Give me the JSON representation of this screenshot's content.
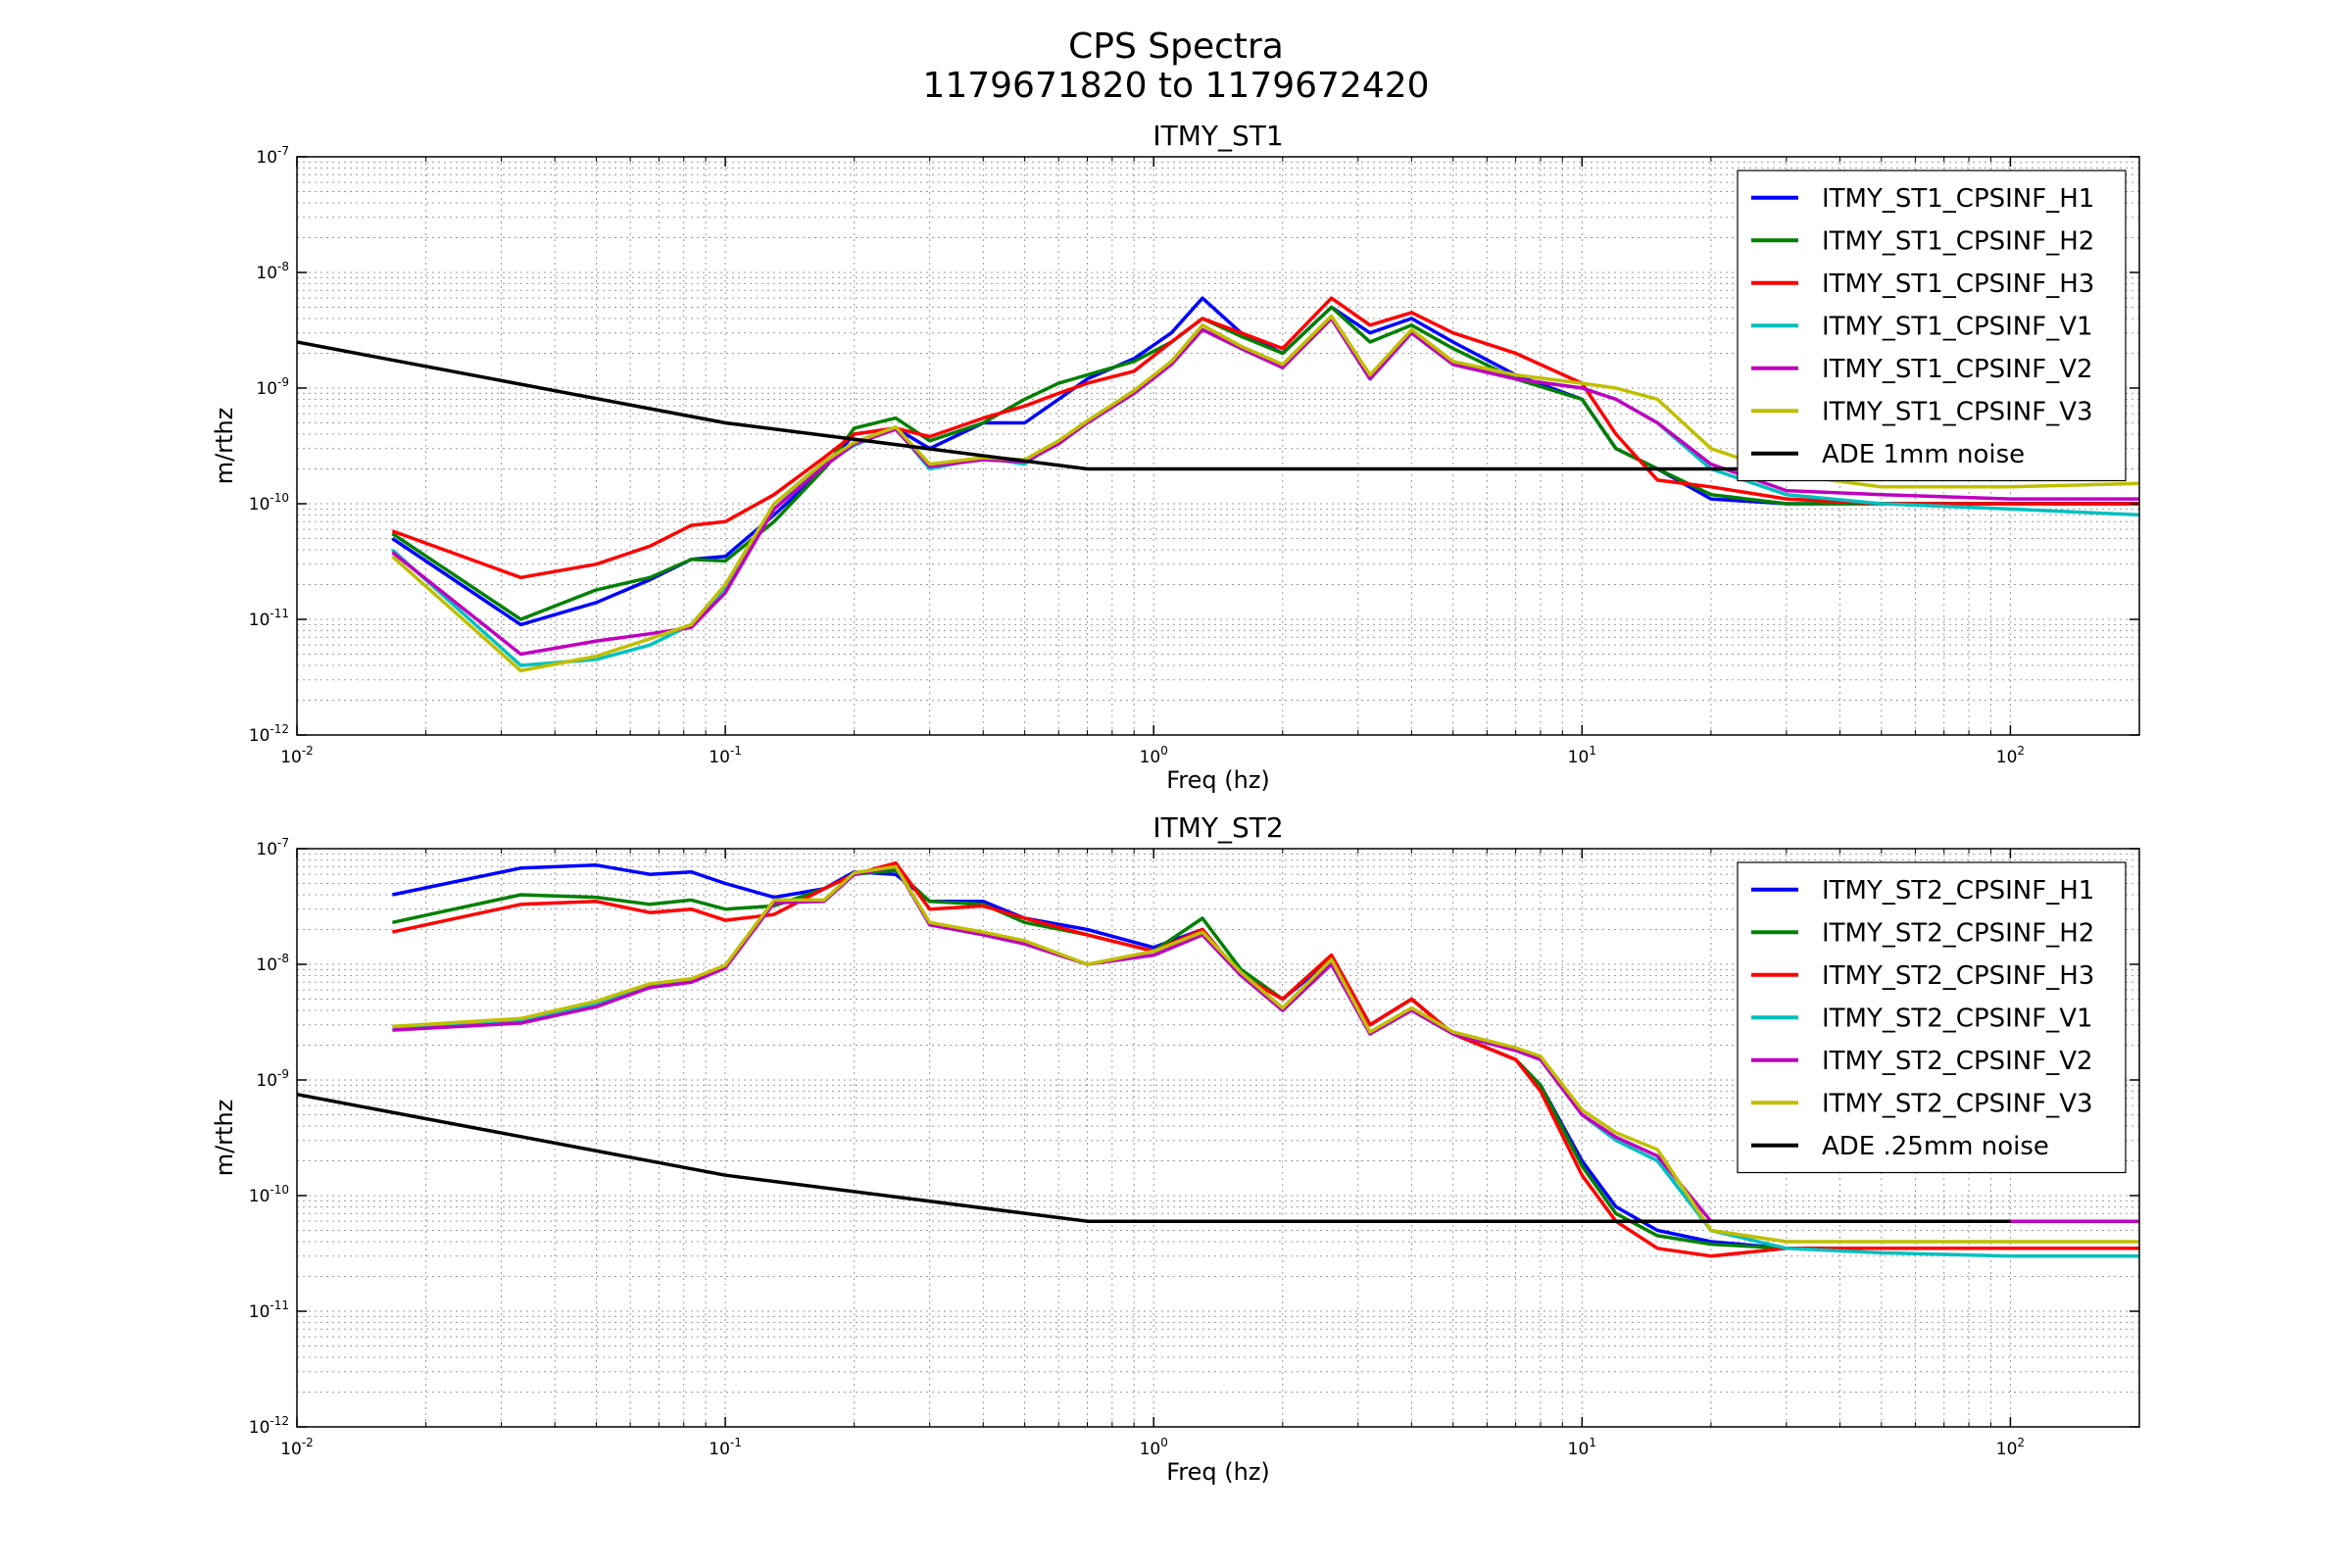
{
  "figure": {
    "title": "CPS Spectra",
    "subtitle": "1179671820 to 1179672420"
  },
  "chart_data": [
    {
      "type": "line",
      "title": "ITMY_ST1",
      "xlabel": "Freq (hz)",
      "ylabel": "m/rthz",
      "xscale": "log",
      "yscale": "log",
      "xlim": [
        0.01,
        200
      ],
      "ylim": [
        1e-12,
        1e-07
      ],
      "xticks": [
        0.01,
        0.1,
        1,
        10,
        100
      ],
      "xtick_labels": [
        {
          "b": "10",
          "e": "-2"
        },
        {
          "b": "10",
          "e": "-1"
        },
        {
          "b": "10",
          "e": "0"
        },
        {
          "b": "10",
          "e": "1"
        },
        {
          "b": "10",
          "e": "2"
        }
      ],
      "yticks": [
        1e-12,
        1e-11,
        1e-10,
        1e-09,
        1e-08,
        1e-07
      ],
      "ytick_labels": [
        {
          "b": "10",
          "e": "-12"
        },
        {
          "b": "10",
          "e": "-11"
        },
        {
          "b": "10",
          "e": "-10"
        },
        {
          "b": "10",
          "e": "-9"
        },
        {
          "b": "10",
          "e": "-8"
        },
        {
          "b": "10",
          "e": "-7"
        }
      ],
      "grid": true,
      "legend_position": "top-right",
      "series": [
        {
          "name": "ITMY_ST1_CPSINF_H1",
          "color": "#0000ff",
          "x": [
            0.0167,
            0.0333,
            0.05,
            0.0667,
            0.0833,
            0.1,
            0.13,
            0.17,
            0.2,
            0.25,
            0.3,
            0.4,
            0.5,
            0.6,
            0.7,
            0.9,
            1.1,
            1.3,
            1.6,
            2.0,
            2.6,
            3.2,
            4.0,
            5.0,
            7.0,
            10,
            12,
            15,
            20,
            30,
            50,
            100,
            200
          ],
          "y": [
            5e-11,
            9e-12,
            1.4e-11,
            2.2e-11,
            3.3e-11,
            3.5e-11,
            8e-11,
            2e-10,
            4e-10,
            4.5e-10,
            3e-10,
            5e-10,
            5e-10,
            8e-10,
            1.2e-09,
            1.8e-09,
            3e-09,
            6e-09,
            3e-09,
            2e-09,
            5e-09,
            3e-09,
            4e-09,
            2.5e-09,
            1.3e-09,
            8e-10,
            3e-10,
            2e-10,
            1.1e-10,
            1e-10,
            1e-10,
            1e-10,
            1e-10
          ]
        },
        {
          "name": "ITMY_ST1_CPSINF_H2",
          "color": "#008000",
          "x": [
            0.0167,
            0.0333,
            0.05,
            0.0667,
            0.0833,
            0.1,
            0.13,
            0.17,
            0.2,
            0.25,
            0.3,
            0.4,
            0.5,
            0.6,
            0.7,
            0.9,
            1.1,
            1.3,
            1.6,
            2.0,
            2.6,
            3.2,
            4.0,
            5.0,
            7.0,
            10,
            12,
            15,
            20,
            30,
            50,
            100,
            200
          ],
          "y": [
            5.5e-11,
            1e-11,
            1.8e-11,
            2.3e-11,
            3.3e-11,
            3.2e-11,
            7e-11,
            2e-10,
            4.5e-10,
            5.5e-10,
            3.5e-10,
            5e-10,
            8e-10,
            1.1e-09,
            1.3e-09,
            1.7e-09,
            2.5e-09,
            4e-09,
            2.8e-09,
            2e-09,
            5e-09,
            2.5e-09,
            3.5e-09,
            2.2e-09,
            1.2e-09,
            8e-10,
            3e-10,
            2e-10,
            1.2e-10,
            1e-10,
            1e-10,
            1e-10,
            1e-10
          ]
        },
        {
          "name": "ITMY_ST1_CPSINF_H3",
          "color": "#ff0000",
          "x": [
            0.0167,
            0.0333,
            0.05,
            0.0667,
            0.0833,
            0.1,
            0.13,
            0.17,
            0.2,
            0.25,
            0.3,
            0.4,
            0.5,
            0.6,
            0.7,
            0.9,
            1.1,
            1.3,
            1.6,
            2.0,
            2.6,
            3.2,
            4.0,
            5.0,
            7.0,
            10,
            12,
            15,
            20,
            30,
            50,
            100,
            200
          ],
          "y": [
            5.8e-11,
            2.3e-11,
            3e-11,
            4.3e-11,
            6.5e-11,
            7e-11,
            1.2e-10,
            2.5e-10,
            4e-10,
            4.5e-10,
            3.8e-10,
            5.5e-10,
            7e-10,
            9e-10,
            1.1e-09,
            1.4e-09,
            2.5e-09,
            4e-09,
            3e-09,
            2.2e-09,
            6e-09,
            3.5e-09,
            4.5e-09,
            3e-09,
            2e-09,
            1.1e-09,
            4e-10,
            1.6e-10,
            1.4e-10,
            1.1e-10,
            1e-10,
            1e-10,
            1e-10
          ]
        },
        {
          "name": "ITMY_ST1_CPSINF_V1",
          "color": "#00bfbf",
          "x": [
            0.0167,
            0.0333,
            0.05,
            0.0667,
            0.0833,
            0.1,
            0.13,
            0.17,
            0.2,
            0.25,
            0.3,
            0.4,
            0.5,
            0.6,
            0.7,
            0.9,
            1.1,
            1.3,
            1.6,
            2.0,
            2.6,
            3.2,
            4.0,
            5.0,
            7.0,
            10,
            12,
            15,
            20,
            30,
            50,
            100,
            200
          ],
          "y": [
            4e-11,
            4e-12,
            4.5e-12,
            6e-12,
            9e-12,
            1.9e-11,
            9e-11,
            2.2e-10,
            3.2e-10,
            4.5e-10,
            2e-10,
            2.5e-10,
            2.2e-10,
            3.5e-10,
            5e-10,
            9e-10,
            1.7e-09,
            3.2e-09,
            2.2e-09,
            1.5e-09,
            4e-09,
            1.2e-09,
            3e-09,
            1.6e-09,
            1.2e-09,
            1e-09,
            8e-10,
            5e-10,
            2e-10,
            1.2e-10,
            1e-10,
            9e-11,
            8e-11
          ]
        },
        {
          "name": "ITMY_ST1_CPSINF_V2",
          "color": "#bf00bf",
          "x": [
            0.0167,
            0.0333,
            0.05,
            0.0667,
            0.0833,
            0.1,
            0.13,
            0.17,
            0.2,
            0.25,
            0.3,
            0.4,
            0.5,
            0.6,
            0.7,
            0.9,
            1.1,
            1.3,
            1.6,
            2.0,
            2.6,
            3.2,
            4.0,
            5.0,
            7.0,
            10,
            12,
            15,
            20,
            30,
            50,
            100,
            200
          ],
          "y": [
            3.8e-11,
            5e-12,
            6.5e-12,
            7.5e-12,
            8.5e-12,
            1.7e-11,
            9e-11,
            2.1e-10,
            3.3e-10,
            4.4e-10,
            2.1e-10,
            2.4e-10,
            2.3e-10,
            3.3e-10,
            5e-10,
            9e-10,
            1.6e-09,
            3.2e-09,
            2.2e-09,
            1.5e-09,
            4e-09,
            1.2e-09,
            3e-09,
            1.6e-09,
            1.2e-09,
            1e-09,
            8e-10,
            5e-10,
            2.2e-10,
            1.3e-10,
            1.2e-10,
            1.1e-10,
            1.1e-10
          ]
        },
        {
          "name": "ITMY_ST1_CPSINF_V3",
          "color": "#bfbf00",
          "x": [
            0.0167,
            0.0333,
            0.05,
            0.0667,
            0.0833,
            0.1,
            0.13,
            0.17,
            0.2,
            0.25,
            0.3,
            0.4,
            0.5,
            0.6,
            0.7,
            0.9,
            1.1,
            1.3,
            1.6,
            2.0,
            2.6,
            3.2,
            4.0,
            5.0,
            7.0,
            10,
            12,
            15,
            20,
            30,
            50,
            100,
            200
          ],
          "y": [
            3.5e-11,
            3.6e-12,
            4.8e-12,
            6.8e-12,
            9e-12,
            2e-11,
            1e-10,
            2.3e-10,
            3.4e-10,
            4.6e-10,
            2.2e-10,
            2.5e-10,
            2.4e-10,
            3.5e-10,
            5.2e-10,
            9.5e-10,
            1.7e-09,
            3.5e-09,
            2.3e-09,
            1.6e-09,
            4.2e-09,
            1.3e-09,
            3.2e-09,
            1.7e-09,
            1.3e-09,
            1.1e-09,
            1e-09,
            8e-10,
            3e-10,
            1.8e-10,
            1.4e-10,
            1.4e-10,
            1.5e-10
          ]
        },
        {
          "name": "ADE 1mm noise",
          "color": "#000000",
          "x": [
            0.01,
            0.1,
            0.7,
            100
          ],
          "y": [
            2.5e-09,
            5e-10,
            2e-10,
            2e-10
          ]
        }
      ]
    },
    {
      "type": "line",
      "title": "ITMY_ST2",
      "xlabel": "Freq (hz)",
      "ylabel": "m/rthz",
      "xscale": "log",
      "yscale": "log",
      "xlim": [
        0.01,
        200
      ],
      "ylim": [
        1e-12,
        1e-07
      ],
      "xticks": [
        0.01,
        0.1,
        1,
        10,
        100
      ],
      "xtick_labels": [
        {
          "b": "10",
          "e": "-2"
        },
        {
          "b": "10",
          "e": "-1"
        },
        {
          "b": "10",
          "e": "0"
        },
        {
          "b": "10",
          "e": "1"
        },
        {
          "b": "10",
          "e": "2"
        }
      ],
      "yticks": [
        1e-12,
        1e-11,
        1e-10,
        1e-09,
        1e-08,
        1e-07
      ],
      "ytick_labels": [
        {
          "b": "10",
          "e": "-12"
        },
        {
          "b": "10",
          "e": "-11"
        },
        {
          "b": "10",
          "e": "-10"
        },
        {
          "b": "10",
          "e": "-9"
        },
        {
          "b": "10",
          "e": "-8"
        },
        {
          "b": "10",
          "e": "-7"
        }
      ],
      "grid": true,
      "legend_position": "top-right",
      "series": [
        {
          "name": "ITMY_ST2_CPSINF_H1",
          "color": "#0000ff",
          "x": [
            0.0167,
            0.0333,
            0.05,
            0.0667,
            0.0833,
            0.1,
            0.13,
            0.17,
            0.2,
            0.25,
            0.3,
            0.4,
            0.5,
            0.7,
            1.0,
            1.3,
            1.6,
            2.0,
            2.6,
            3.2,
            4.0,
            5.0,
            7.0,
            8.0,
            10,
            12,
            15,
            20,
            30,
            50,
            100,
            200
          ],
          "y": [
            4e-08,
            6.8e-08,
            7.2e-08,
            6e-08,
            6.3e-08,
            5e-08,
            3.8e-08,
            4.5e-08,
            6.3e-08,
            6e-08,
            3.5e-08,
            3.5e-08,
            2.5e-08,
            2e-08,
            1.4e-08,
            2e-08,
            8e-09,
            5e-09,
            1.1e-08,
            3e-09,
            5e-09,
            2.5e-09,
            1.5e-09,
            9e-10,
            2e-10,
            8e-11,
            5e-11,
            4e-11,
            3.5e-11,
            3.5e-11,
            3.5e-11,
            3.5e-11
          ]
        },
        {
          "name": "ITMY_ST2_CPSINF_H2",
          "color": "#008000",
          "x": [
            0.0167,
            0.0333,
            0.05,
            0.0667,
            0.0833,
            0.1,
            0.13,
            0.17,
            0.2,
            0.25,
            0.3,
            0.4,
            0.5,
            0.7,
            1.0,
            1.3,
            1.6,
            2.0,
            2.6,
            3.2,
            4.0,
            5.0,
            7.0,
            8.0,
            10,
            12,
            15,
            20,
            30,
            50,
            100,
            200
          ],
          "y": [
            2.3e-08,
            4e-08,
            3.8e-08,
            3.3e-08,
            3.6e-08,
            3e-08,
            3.2e-08,
            4.5e-08,
            6e-08,
            6.5e-08,
            3.5e-08,
            3.3e-08,
            2.3e-08,
            1.8e-08,
            1.3e-08,
            2.5e-08,
            9e-09,
            5e-09,
            1.2e-08,
            3e-09,
            5e-09,
            2.5e-09,
            1.5e-09,
            9e-10,
            1.8e-10,
            7e-11,
            4.5e-11,
            3.8e-11,
            3.5e-11,
            3.5e-11,
            3.5e-11,
            3.5e-11
          ]
        },
        {
          "name": "ITMY_ST2_CPSINF_H3",
          "color": "#ff0000",
          "x": [
            0.0167,
            0.0333,
            0.05,
            0.0667,
            0.0833,
            0.1,
            0.13,
            0.17,
            0.2,
            0.25,
            0.3,
            0.4,
            0.5,
            0.7,
            1.0,
            1.3,
            1.6,
            2.0,
            2.6,
            3.2,
            4.0,
            5.0,
            7.0,
            8.0,
            10,
            12,
            15,
            20,
            30,
            50,
            100,
            200
          ],
          "y": [
            1.9e-08,
            3.3e-08,
            3.5e-08,
            2.8e-08,
            3e-08,
            2.4e-08,
            2.7e-08,
            4.5e-08,
            6e-08,
            7.5e-08,
            3e-08,
            3.2e-08,
            2.5e-08,
            1.8e-08,
            1.3e-08,
            2e-08,
            8e-09,
            5e-09,
            1.2e-08,
            3e-09,
            5e-09,
            2.5e-09,
            1.5e-09,
            8e-10,
            1.5e-10,
            6e-11,
            3.5e-11,
            3e-11,
            3.5e-11,
            3.5e-11,
            3.5e-11,
            3.5e-11
          ]
        },
        {
          "name": "ITMY_ST2_CPSINF_V1",
          "color": "#00bfbf",
          "x": [
            0.0167,
            0.0333,
            0.05,
            0.0667,
            0.0833,
            0.1,
            0.13,
            0.17,
            0.2,
            0.25,
            0.3,
            0.4,
            0.5,
            0.7,
            1.0,
            1.3,
            1.6,
            2.0,
            2.6,
            3.2,
            4.0,
            5.0,
            7.0,
            8.0,
            10,
            12,
            15,
            20,
            30,
            50,
            100,
            200
          ],
          "y": [
            2.8e-09,
            3.2e-09,
            4.5e-09,
            6.5e-09,
            7.2e-09,
            9.5e-09,
            3.5e-08,
            3.5e-08,
            6e-08,
            7e-08,
            2.2e-08,
            1.8e-08,
            1.5e-08,
            1e-08,
            1.2e-08,
            1.8e-08,
            8e-09,
            4e-09,
            1e-08,
            2.5e-09,
            4e-09,
            2.5e-09,
            1.8e-09,
            1.5e-09,
            5e-10,
            3e-10,
            2e-10,
            5e-11,
            3.5e-11,
            3.2e-11,
            3e-11,
            3e-11
          ]
        },
        {
          "name": "ITMY_ST2_CPSINF_V2",
          "color": "#bf00bf",
          "x": [
            0.0167,
            0.0333,
            0.05,
            0.0667,
            0.0833,
            0.1,
            0.13,
            0.17,
            0.2,
            0.25,
            0.3,
            0.4,
            0.5,
            0.7,
            1.0,
            1.3,
            1.6,
            2.0,
            2.6,
            3.2,
            4.0,
            5.0,
            7.0,
            8.0,
            10,
            12,
            15,
            20,
            30,
            50,
            100,
            200
          ],
          "y": [
            2.7e-09,
            3.1e-09,
            4.3e-09,
            6.3e-09,
            7e-09,
            9.3e-09,
            3.4e-08,
            3.5e-08,
            6e-08,
            7e-08,
            2.2e-08,
            1.8e-08,
            1.5e-08,
            1e-08,
            1.2e-08,
            1.8e-08,
            8e-09,
            4e-09,
            1e-08,
            2.5e-09,
            4e-09,
            2.5e-09,
            1.8e-09,
            1.5e-09,
            5e-10,
            3.2e-10,
            2.2e-10,
            6e-11,
            6e-11,
            6e-11,
            6e-11,
            6e-11
          ]
        },
        {
          "name": "ITMY_ST2_CPSINF_V3",
          "color": "#bfbf00",
          "x": [
            0.0167,
            0.0333,
            0.05,
            0.0667,
            0.0833,
            0.1,
            0.13,
            0.17,
            0.2,
            0.25,
            0.3,
            0.4,
            0.5,
            0.7,
            1.0,
            1.3,
            1.6,
            2.0,
            2.6,
            3.2,
            4.0,
            5.0,
            7.0,
            8.0,
            10,
            12,
            15,
            20,
            30,
            50,
            100,
            200
          ],
          "y": [
            2.9e-09,
            3.4e-09,
            4.8e-09,
            6.8e-09,
            7.5e-09,
            9.8e-09,
            3.6e-08,
            3.6e-08,
            6.2e-08,
            7e-08,
            2.3e-08,
            1.9e-08,
            1.6e-08,
            1e-08,
            1.3e-08,
            1.9e-08,
            8.5e-09,
            4.2e-09,
            1.1e-08,
            2.6e-09,
            4.2e-09,
            2.6e-09,
            1.9e-09,
            1.6e-09,
            5.5e-10,
            3.5e-10,
            2.5e-10,
            5e-11,
            4e-11,
            4e-11,
            4e-11,
            4e-11
          ]
        },
        {
          "name": "ADE .25mm noise",
          "color": "#000000",
          "x": [
            0.01,
            0.1,
            0.7,
            100
          ],
          "y": [
            7.5e-10,
            1.5e-10,
            6e-11,
            6e-11
          ]
        }
      ]
    }
  ]
}
